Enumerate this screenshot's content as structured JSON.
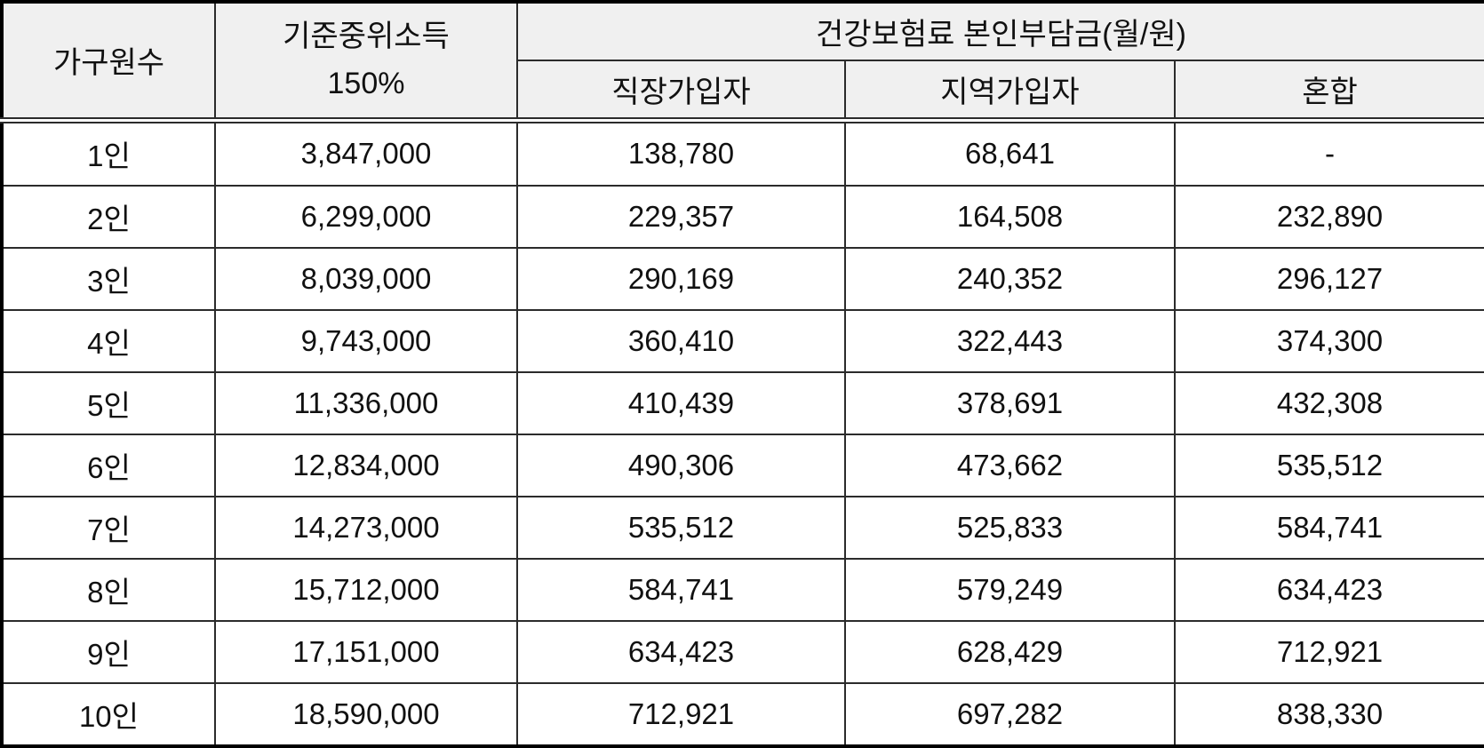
{
  "table": {
    "header": {
      "col_household": "가구원수",
      "col_income_line1": "기준중위소득",
      "col_income_line2": "150%",
      "group_insurance": "건강보험료 본인부담금(월/원)",
      "col_employee": "직장가입자",
      "col_regional": "지역가입자",
      "col_mixed": "혼합"
    },
    "rows": [
      {
        "cells": [
          "1인",
          "3,847,000",
          "138,780",
          "68,641",
          "-"
        ]
      },
      {
        "cells": [
          "2인",
          "6,299,000",
          "229,357",
          "164,508",
          "232,890"
        ]
      },
      {
        "cells": [
          "3인",
          "8,039,000",
          "290,169",
          "240,352",
          "296,127"
        ]
      },
      {
        "cells": [
          "4인",
          "9,743,000",
          "360,410",
          "322,443",
          "374,300"
        ]
      },
      {
        "cells": [
          "5인",
          "11,336,000",
          "410,439",
          "378,691",
          "432,308"
        ]
      },
      {
        "cells": [
          "6인",
          "12,834,000",
          "490,306",
          "473,662",
          "535,512"
        ]
      },
      {
        "cells": [
          "7인",
          "14,273,000",
          "535,512",
          "525,833",
          "584,741"
        ]
      },
      {
        "cells": [
          "8인",
          "15,712,000",
          "584,741",
          "579,249",
          "634,423"
        ]
      },
      {
        "cells": [
          "9인",
          "17,151,000",
          "634,423",
          "628,429",
          "712,921"
        ]
      },
      {
        "cells": [
          "10인",
          "18,590,000",
          "712,921",
          "697,282",
          "838,330"
        ]
      }
    ]
  }
}
